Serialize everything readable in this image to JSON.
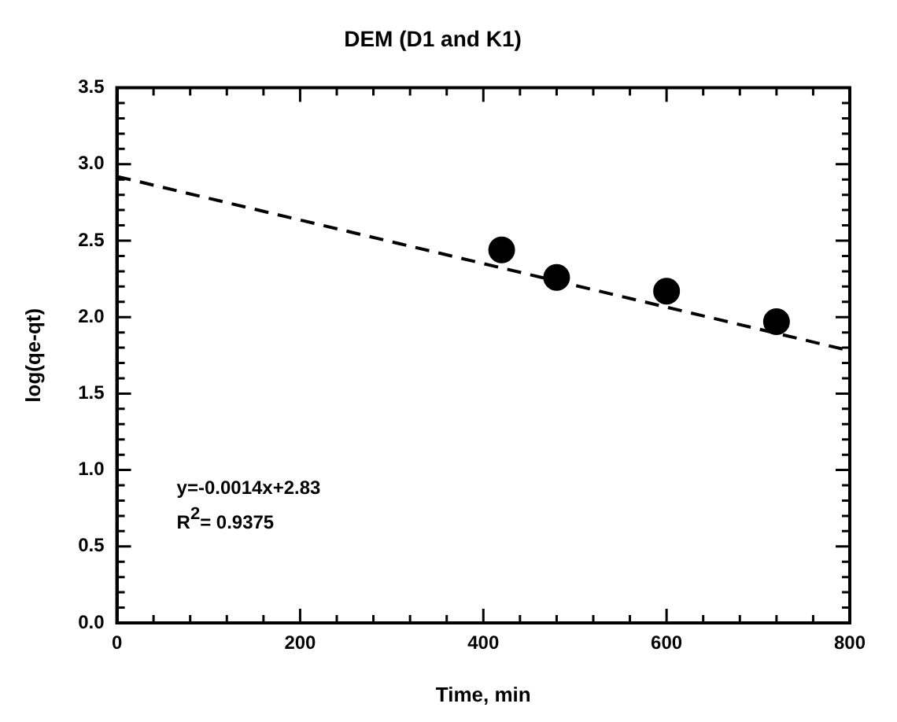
{
  "chart_data": {
    "type": "scatter",
    "title": "DEM (D1 and K1)",
    "xlabel": "Time, min",
    "ylabel": "log(qe-qt)",
    "xlim": [
      0,
      800
    ],
    "xticks": [
      0,
      200,
      400,
      600,
      800
    ],
    "ylim": [
      0,
      3.5
    ],
    "yticks": [
      {
        "value": 0,
        "label": "0.0"
      },
      0.5,
      {
        "value": 1,
        "label": "1.0"
      },
      1.5,
      {
        "value": 2,
        "label": "2.0"
      },
      2.5,
      {
        "value": 3,
        "label": "3.0"
      },
      3.5
    ],
    "series": [
      {
        "x": [
          420,
          480,
          600,
          720
        ],
        "values": [
          2.44,
          2.26,
          2.17,
          1.97
        ],
        "color": "#000000",
        "marker": "circle"
      },
      {
        "type": "line",
        "x": [
          0,
          800
        ],
        "values": [
          2.92,
          1.78
        ],
        "color": "#000000",
        "marker": "none",
        "line_style": "dashed"
      }
    ],
    "annotations": [
      "y=-0.0014x+2.83",
      "R$^{2}$= 0.9375"
    ],
    "grid": false,
    "legend": false
  }
}
